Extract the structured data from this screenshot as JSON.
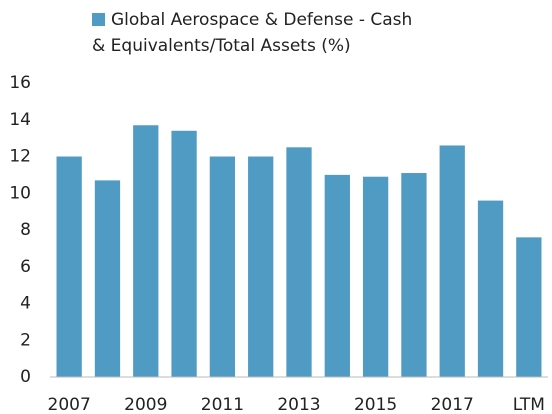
{
  "chart_data": {
    "type": "bar",
    "categories": [
      "2007",
      null,
      "2009",
      null,
      "2011",
      null,
      "2013",
      null,
      "2015",
      null,
      "2017",
      null,
      "LTM"
    ],
    "series": [
      {
        "name": "Global Aerospace & Defense - Cash & Equivalents/Total Assets (%)",
        "color": "#4f9bc4",
        "values": [
          12.0,
          10.7,
          13.7,
          13.4,
          12.0,
          12.0,
          12.5,
          11.0,
          10.9,
          11.1,
          12.6,
          9.6,
          7.6
        ]
      }
    ],
    "ylim": [
      0,
      16
    ],
    "yticks": [
      0,
      2,
      4,
      6,
      8,
      10,
      12,
      14,
      16
    ],
    "grid": false
  }
}
